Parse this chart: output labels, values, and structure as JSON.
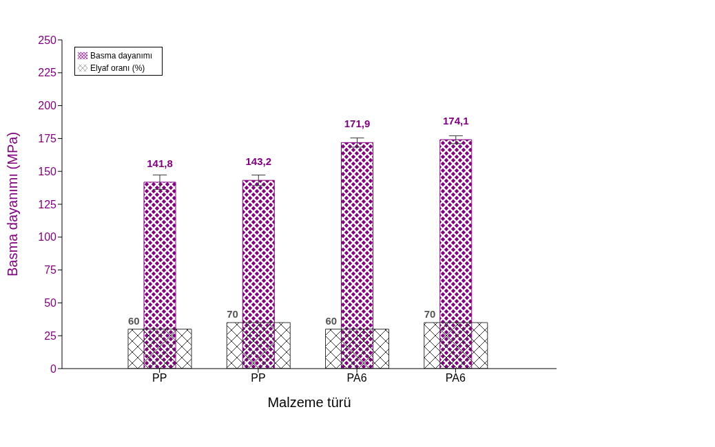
{
  "chart_data": {
    "type": "bar",
    "xlabel": "Malzeme türü",
    "ylabel": "Basma dayanımı (MPa)",
    "categories": [
      "PP",
      "PP",
      "PA6",
      "PA6"
    ],
    "ylim": [
      0,
      250
    ],
    "yticks": [
      0,
      25,
      50,
      75,
      100,
      125,
      150,
      175,
      200,
      225,
      250
    ],
    "y2lim": [
      0,
      500
    ],
    "legend": "top left",
    "series": [
      {
        "name": "Basma dayanımı",
        "color": "#800080",
        "values": [
          141.8,
          143.2,
          171.9,
          174.1
        ],
        "errors": [
          5.5,
          4,
          3.5,
          3
        ],
        "value_labels": [
          "141,8",
          "143,2",
          "171,9",
          "174,1"
        ]
      },
      {
        "name": "Elyaf oranı (%)",
        "color": "#333333",
        "axis": "y2",
        "values": [
          60,
          70,
          60,
          70
        ],
        "value_labels": [
          "60",
          "70",
          "60",
          "70"
        ]
      }
    ]
  }
}
